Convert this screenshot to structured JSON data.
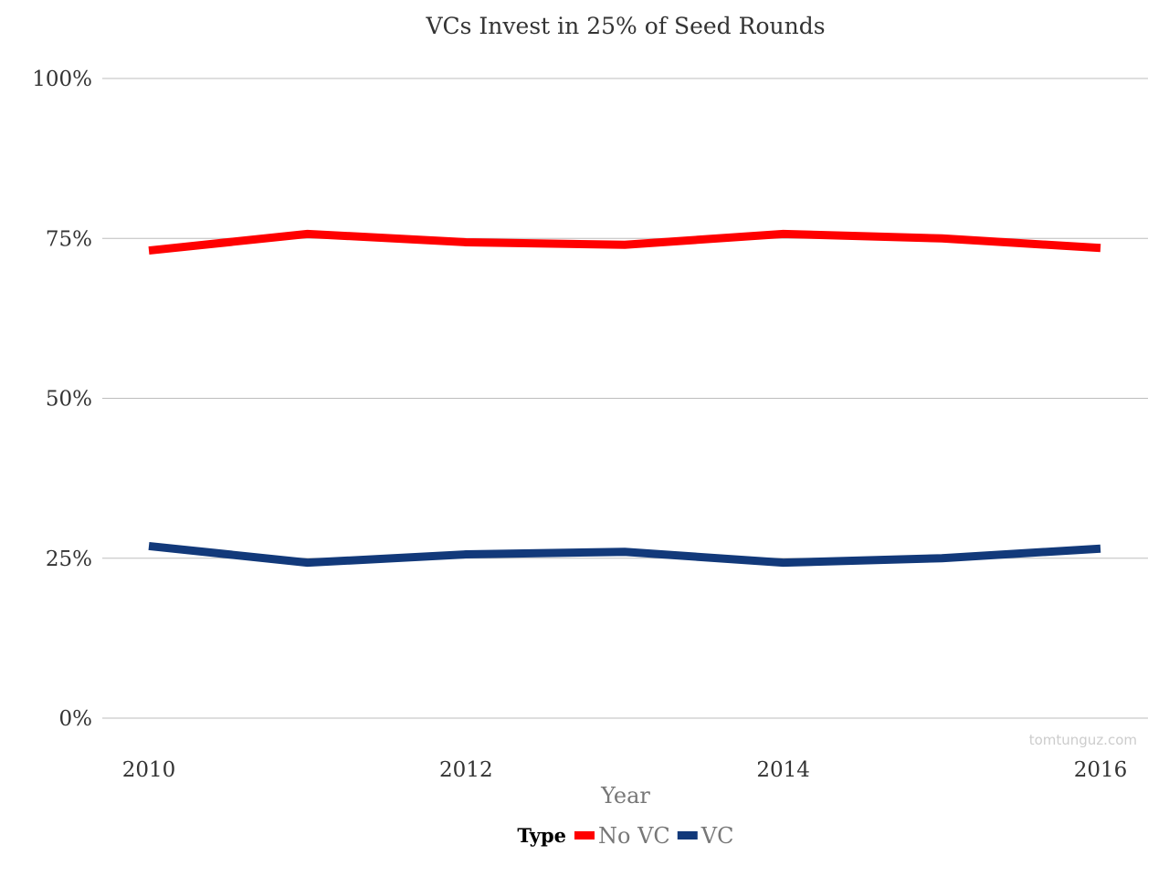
{
  "watermark": "tomtunguz.com",
  "legend": {
    "title": "Type"
  },
  "chart_data": {
    "type": "line",
    "title": "VCs Invest in 25% of Seed Rounds",
    "xlabel": "Year",
    "ylabel": "",
    "x": [
      2010,
      2011,
      2012,
      2013,
      2014,
      2015,
      2016
    ],
    "x_ticks": [
      "2010",
      "2012",
      "2014",
      "2016"
    ],
    "y_ticks": [
      "0%",
      "25%",
      "50%",
      "75%",
      "100%"
    ],
    "ylim": [
      0,
      100
    ],
    "grid": true,
    "legend_position": "bottom",
    "series": [
      {
        "name": "No VC",
        "color": "#ff0000",
        "values": [
          73.1,
          75.7,
          74.4,
          74.0,
          75.7,
          75.0,
          73.5
        ]
      },
      {
        "name": "VC",
        "color": "#12397a",
        "values": [
          26.9,
          24.3,
          25.6,
          26.0,
          24.3,
          25.0,
          26.5
        ]
      }
    ]
  }
}
